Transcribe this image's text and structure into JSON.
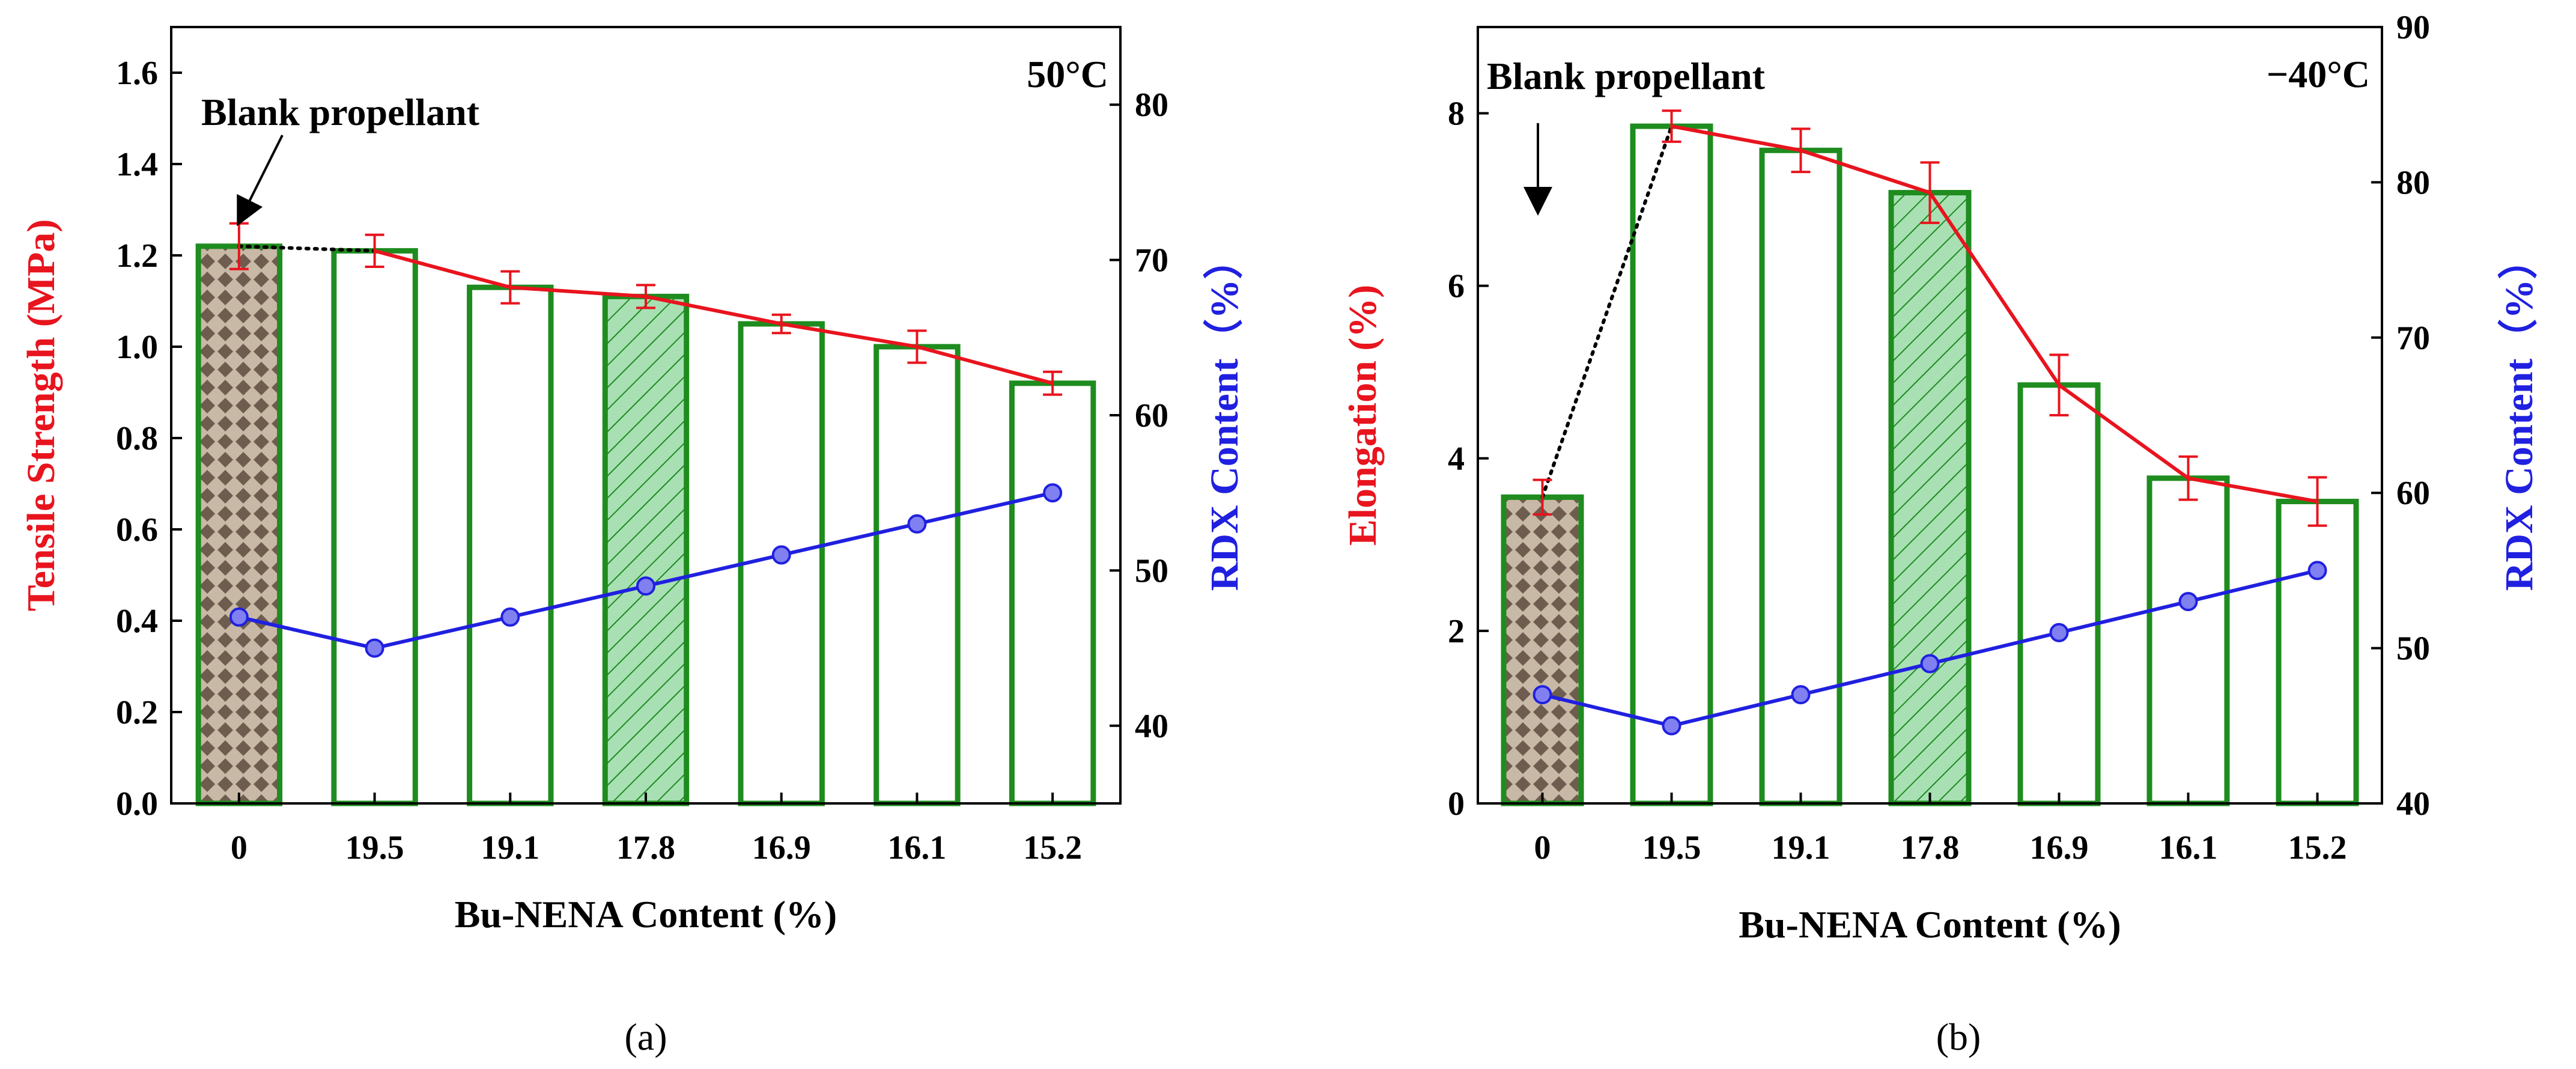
{
  "figure": {
    "panel_a_label": "(a)",
    "panel_b_label": "(b)"
  },
  "colors": {
    "bar_stroke": "#1e8c1e",
    "bar_highlight_fill": "#a8e0b4",
    "hatch_line": "#1e8c1e",
    "blank_fill": "#c8b8a6",
    "blank_diamond": "#6e5c4e",
    "line_red": "#e8141e",
    "line_blue": "#2020e0",
    "marker_blue": "#8080f0",
    "axis": "#000000",
    "dotted": "#000000"
  },
  "chart_data": [
    {
      "type": "bar",
      "panel": "a",
      "categories": [
        "0",
        "19.5",
        "19.1",
        "17.8",
        "16.9",
        "16.1",
        "15.2"
      ],
      "xlabel": "Bu-NENA Content (%)",
      "ylabel": "Tensile Strength (MPa)",
      "y2label": "RDX Content（%）",
      "ylim": [
        0,
        1.7
      ],
      "yticks": [
        "0.0",
        "0.2",
        "0.4",
        "0.6",
        "0.8",
        "1.0",
        "1.2",
        "1.4",
        "1.6"
      ],
      "y2lim": [
        35,
        85
      ],
      "y2ticks": [
        "40",
        "50",
        "60",
        "70",
        "80"
      ],
      "temperature": "50°C",
      "annotation": "Blank propellant",
      "highlight_index": 3,
      "blank_index": 0,
      "series": [
        {
          "name": "Tensile Strength",
          "kind": "bar+line",
          "axis": "left",
          "values": [
            1.22,
            1.21,
            1.13,
            1.11,
            1.05,
            1.0,
            0.92
          ],
          "errors": [
            0.05,
            0.035,
            0.035,
            0.025,
            0.02,
            0.035,
            0.025
          ]
        },
        {
          "name": "RDX Content",
          "kind": "line",
          "axis": "right",
          "values": [
            47,
            45,
            47,
            49,
            51,
            53,
            55
          ]
        }
      ]
    },
    {
      "type": "bar",
      "panel": "b",
      "categories": [
        "0",
        "19.5",
        "19.1",
        "17.8",
        "16.9",
        "16.1",
        "15.2"
      ],
      "xlabel": "Bu-NENA Content (%)",
      "ylabel": "Elongation (%)",
      "y2label": "RDX Content（%）",
      "ylim": [
        0,
        9
      ],
      "yticks": [
        "0",
        "2",
        "4",
        "6",
        "8"
      ],
      "y2lim": [
        40,
        90
      ],
      "y2ticks": [
        "40",
        "50",
        "60",
        "70",
        "80",
        "90"
      ],
      "temperature": "−40°C",
      "annotation": "Blank propellant",
      "highlight_index": 3,
      "blank_index": 0,
      "series": [
        {
          "name": "Elongation",
          "kind": "bar+line",
          "axis": "left",
          "values": [
            3.55,
            7.85,
            7.57,
            7.08,
            4.85,
            3.77,
            3.5
          ],
          "errors": [
            0.2,
            0.18,
            0.25,
            0.35,
            0.35,
            0.25,
            0.28
          ]
        },
        {
          "name": "RDX Content",
          "kind": "line",
          "axis": "right",
          "values": [
            47,
            45,
            47,
            49,
            51,
            53,
            55
          ]
        }
      ]
    }
  ]
}
